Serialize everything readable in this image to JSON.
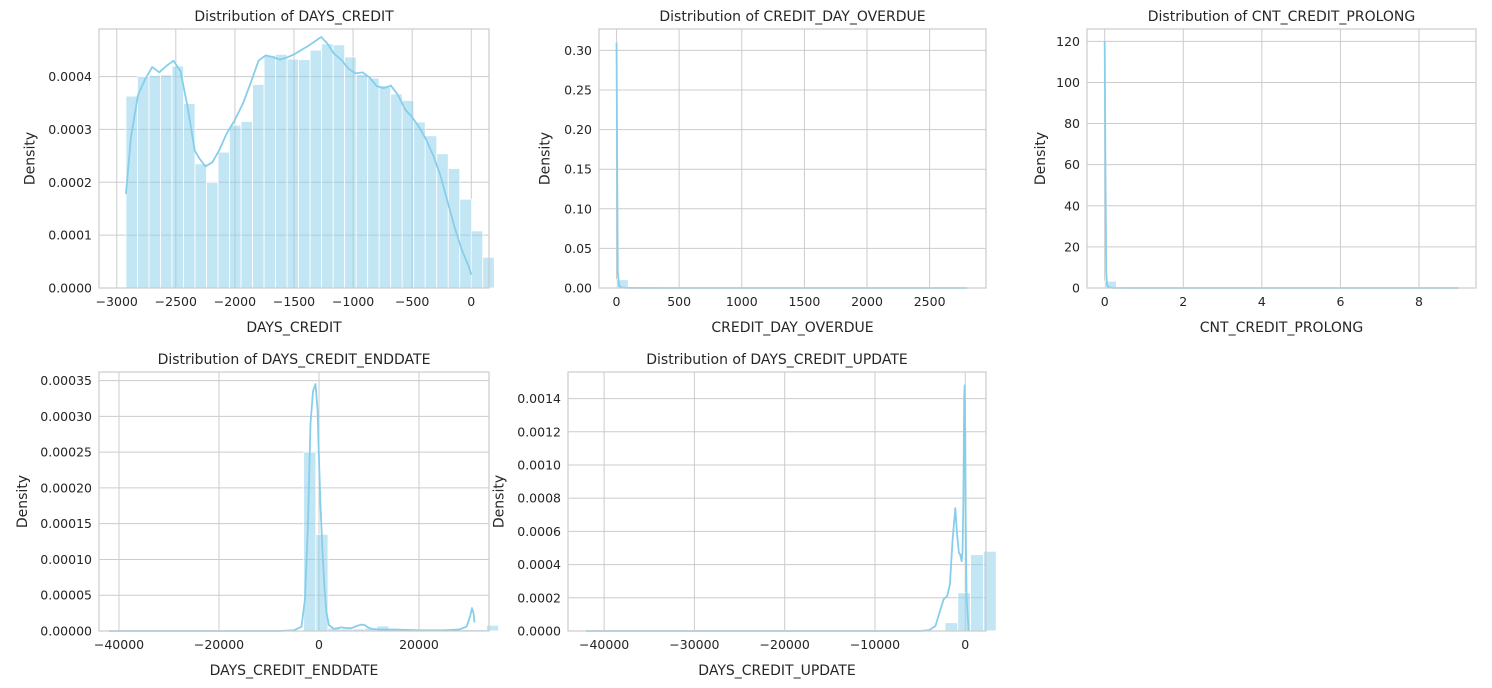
{
  "figure": {
    "background": "#ffffff",
    "bar_color": "#87ceeb",
    "grid_color": "#cccccc",
    "spine_color": "#cccccc"
  },
  "chart_data": [
    {
      "type": "histogram",
      "title": "Distribution of DAYS_CREDIT",
      "xlabel": "DAYS_CREDIT",
      "ylabel": "Density",
      "xlim": [
        -3150,
        150
      ],
      "ylim": [
        0,
        0.00049
      ],
      "xticks": [
        -3000,
        -2500,
        -2000,
        -1500,
        -1000,
        -500,
        0
      ],
      "xtick_labels": [
        "−3000",
        "−2500",
        "−2000",
        "−1500",
        "−1000",
        "−500",
        "0"
      ],
      "yticks": [
        0,
        0.0001,
        0.0002,
        0.0003,
        0.0004
      ],
      "ytick_labels": [
        "0.0000",
        "0.0001",
        "0.0002",
        "0.0003",
        "0.0004"
      ],
      "grid": true,
      "bin_start": -2922,
      "bin_width": 97.4,
      "values": [
        0.000363,
        0.0004,
        0.000402,
        0.000403,
        0.00042,
        0.000349,
        0.000235,
        0.0002,
        0.000257,
        0.000308,
        0.000315,
        0.000385,
        0.00044,
        0.000442,
        0.000433,
        0.000432,
        0.00045,
        0.000462,
        0.00046,
        0.000437,
        0.000404,
        0.000397,
        0.000383,
        0.000367,
        0.000355,
        0.000314,
        0.000288,
        0.000254,
        0.000226,
        0.000168,
        0.000108,
        5.8e-05
      ],
      "kde": {
        "x": [
          -2922,
          -2880,
          -2820,
          -2760,
          -2700,
          -2640,
          -2580,
          -2520,
          -2460,
          -2400,
          -2340,
          -2300,
          -2250,
          -2190,
          -2130,
          -2070,
          -2000,
          -1930,
          -1860,
          -1800,
          -1740,
          -1680,
          -1620,
          -1560,
          -1500,
          -1440,
          -1380,
          -1320,
          -1270,
          -1220,
          -1160,
          -1100,
          -1040,
          -980,
          -920,
          -860,
          -800,
          -740,
          -680,
          -620,
          -560,
          -500,
          -440,
          -380,
          -320,
          -260,
          -200,
          -140,
          -80,
          -20,
          0
        ],
        "y": [
          0.000178,
          0.000285,
          0.000365,
          0.000395,
          0.000418,
          0.000408,
          0.00042,
          0.00043,
          0.00041,
          0.000342,
          0.00026,
          0.000245,
          0.00023,
          0.000238,
          0.000262,
          0.000292,
          0.000318,
          0.00035,
          0.000392,
          0.00043,
          0.00044,
          0.000437,
          0.000432,
          0.000436,
          0.000442,
          0.00045,
          0.000458,
          0.000467,
          0.000475,
          0.000463,
          0.000443,
          0.000432,
          0.000415,
          0.000406,
          0.000408,
          0.000398,
          0.000382,
          0.000378,
          0.000383,
          0.000365,
          0.000338,
          0.000323,
          0.000304,
          0.00028,
          0.00025,
          0.000212,
          0.000163,
          0.000114,
          7.2e-05,
          4e-05,
          2.5e-05
        ]
      }
    },
    {
      "type": "histogram",
      "title": "Distribution of CREDIT_DAY_OVERDUE",
      "xlabel": "CREDIT_DAY_OVERDUE",
      "ylabel": "Density",
      "xlim": [
        -140,
        2950
      ],
      "ylim": [
        0,
        0.327
      ],
      "xticks": [
        0,
        500,
        1000,
        1500,
        2000,
        2500
      ],
      "xtick_labels": [
        "0",
        "500",
        "1000",
        "1500",
        "2000",
        "2500"
      ],
      "yticks": [
        0,
        0.05,
        0.1,
        0.15,
        0.2,
        0.25,
        0.3
      ],
      "ytick_labels": [
        "0.00",
        "0.05",
        "0.10",
        "0.15",
        "0.20",
        "0.25",
        "0.30"
      ],
      "grid": true,
      "bin_start": 0,
      "bin_width": 93.5,
      "values": [
        0.0105,
        0.0004,
        0.0001,
        5e-05,
        3e-05,
        0,
        0,
        0,
        0,
        0,
        0,
        0,
        0,
        0,
        0,
        0,
        0,
        0,
        0,
        0,
        0,
        0,
        0,
        0,
        0,
        0,
        0,
        0,
        0,
        2e-05
      ],
      "kde": {
        "x": [
          0,
          5,
          10,
          20,
          40,
          80,
          160,
          400,
          1000,
          2000,
          2800
        ],
        "y": [
          0.31,
          0.16,
          0.02,
          0.003,
          0.0005,
          0.0002,
          0.0001,
          0,
          0,
          0,
          0
        ]
      }
    },
    {
      "type": "histogram",
      "title": "Distribution of CNT_CREDIT_PROLONG",
      "xlabel": "CNT_CREDIT_PROLONG",
      "ylabel": "Density",
      "xlim": [
        -0.45,
        9.45
      ],
      "ylim": [
        0,
        126
      ],
      "xticks": [
        0,
        2,
        4,
        6,
        8
      ],
      "xtick_labels": [
        "0",
        "2",
        "4",
        "6",
        "8"
      ],
      "yticks": [
        0,
        20,
        40,
        60,
        80,
        100,
        120
      ],
      "ytick_labels": [
        "0",
        "20",
        "40",
        "60",
        "80",
        "100",
        "120"
      ],
      "grid": true,
      "bin_start": 0,
      "bin_width": 0.3,
      "values": [
        3.3,
        0.03,
        0,
        0.02,
        0,
        0,
        0,
        0,
        0,
        0,
        0,
        0,
        0,
        0,
        0,
        0,
        0,
        0,
        0,
        0,
        0,
        0,
        0,
        0,
        0,
        0,
        0,
        0,
        0,
        0.01
      ],
      "kde": {
        "x": [
          0,
          0.02,
          0.04,
          0.06,
          0.1,
          0.2,
          0.5,
          1,
          2,
          9
        ],
        "y": [
          120,
          55,
          8,
          1.5,
          0.3,
          0.05,
          0.01,
          0,
          0,
          0
        ]
      }
    },
    {
      "type": "histogram",
      "title": "Distribution of DAYS_CREDIT_ENDDATE",
      "xlabel": "DAYS_CREDIT_ENDDATE",
      "ylabel": "Density",
      "xlim": [
        -44000,
        34000
      ],
      "ylim": [
        0,
        0.000362
      ],
      "xticks": [
        -40000,
        -20000,
        0,
        20000
      ],
      "xtick_labels": [
        "−40000",
        "−20000",
        "0",
        "20000"
      ],
      "yticks": [
        0,
        5e-05,
        0.0001,
        0.00015,
        0.0002,
        0.00025,
        0.0003,
        0.00035
      ],
      "ytick_labels": [
        "0.00000",
        "0.00005",
        "0.00010",
        "0.00015",
        "0.00020",
        "0.00025",
        "0.00030",
        "0.00035"
      ],
      "grid": true,
      "bin_start": -42060,
      "bin_width": 2437,
      "values": [
        0,
        0,
        0,
        0,
        0,
        0,
        0,
        0,
        0,
        0,
        0,
        0,
        0,
        0,
        0,
        0,
        0.00025,
        0.000135,
        4e-06,
        3e-06,
        3e-06,
        4e-06,
        7e-06,
        3e-06,
        2e-06,
        2e-06,
        2e-06,
        2e-06,
        2e-06,
        2e-06,
        2e-06,
        8e-06
      ],
      "kde": {
        "x": [
          -42000,
          -8000,
          -5000,
          -3500,
          -2800,
          -2200,
          -1700,
          -1200,
          -700,
          -300,
          0,
          300,
          700,
          1100,
          1500,
          2000,
          3000,
          4500,
          5500,
          6500,
          7500,
          8500,
          9200,
          9800,
          10500,
          12000,
          15000,
          20000,
          25000,
          28000,
          29500,
          30200,
          30600,
          30900,
          31100
        ],
        "y": [
          0,
          0,
          1e-06,
          6e-06,
          4.5e-05,
          0.00015,
          0.00029,
          0.000335,
          0.000345,
          0.00031,
          0.00024,
          0.000175,
          0.00011,
          6e-05,
          2.5e-05,
          8e-06,
          3e-06,
          5e-06,
          4e-06,
          4e-06,
          7e-06,
          9e-06,
          8e-06,
          5e-06,
          3e-06,
          2e-06,
          2e-06,
          1e-06,
          1e-06,
          2e-06,
          6e-06,
          2e-05,
          3.2e-05,
          2.5e-05,
          1.2e-05
        ]
      }
    },
    {
      "type": "histogram",
      "title": "Distribution of DAYS_CREDIT_UPDATE",
      "xlabel": "DAYS_CREDIT_UPDATE",
      "ylabel": "Density",
      "xlim": [
        -44000,
        2300
      ],
      "ylim": [
        0,
        0.00156
      ],
      "xticks": [
        -40000,
        -30000,
        -20000,
        -10000,
        0
      ],
      "xtick_labels": [
        "−40000",
        "−30000",
        "−20000",
        "−10000",
        "0"
      ],
      "yticks": [
        0,
        0.0002,
        0.0004,
        0.0006,
        0.0008,
        0.001,
        0.0012,
        0.0014
      ],
      "ytick_labels": [
        "0.0000",
        "0.0002",
        "0.0004",
        "0.0006",
        "0.0008",
        "0.0010",
        "0.0012",
        "0.0014"
      ],
      "grid": true,
      "bin_start": -41947,
      "bin_width": 1418,
      "values": [
        0,
        0,
        0,
        0,
        0,
        0,
        0,
        0,
        0,
        0,
        0,
        0,
        0,
        0,
        0,
        0,
        0,
        0,
        0,
        0,
        0,
        0,
        0,
        0,
        0,
        0,
        0,
        5e-06,
        5e-05,
        0.00023,
        0.00046,
        0.00048
      ],
      "kde": {
        "x": [
          -42000,
          -5000,
          -4000,
          -3300,
          -2800,
          -2400,
          -2000,
          -1700,
          -1400,
          -1100,
          -900,
          -700,
          -550,
          -400,
          -300,
          -200,
          -120,
          -60,
          0,
          60,
          150,
          372
        ],
        "y": [
          0,
          0,
          5e-06,
          3e-05,
          0.00012,
          0.00019,
          0.00021,
          0.00028,
          0.00055,
          0.00074,
          0.00058,
          0.00047,
          0.00046,
          0.00042,
          0.00048,
          0.0008,
          0.0014,
          0.00148,
          0.0012,
          0.0006,
          0.0002,
          0
        ]
      }
    }
  ]
}
